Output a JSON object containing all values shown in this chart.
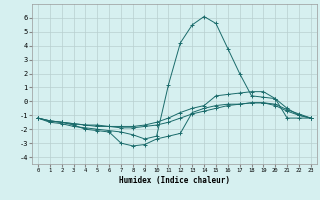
{
  "title": "",
  "xlabel": "Humidex (Indice chaleur)",
  "bg_color": "#d6f0f0",
  "grid_color": "#b8d0d0",
  "line_color": "#1a6b6b",
  "xlim": [
    -0.5,
    23.5
  ],
  "ylim": [
    -4.5,
    7.0
  ],
  "xticks": [
    0,
    1,
    2,
    3,
    4,
    5,
    6,
    7,
    8,
    9,
    10,
    11,
    12,
    13,
    14,
    15,
    16,
    17,
    18,
    19,
    20,
    21,
    22,
    23
  ],
  "yticks": [
    -4,
    -3,
    -2,
    -1,
    0,
    1,
    2,
    3,
    4,
    5,
    6
  ],
  "series": [
    {
      "x": [
        0,
        1,
        2,
        3,
        4,
        5,
        6,
        7,
        8,
        9,
        10,
        11,
        12,
        13,
        14,
        15,
        16,
        17,
        18,
        19,
        20,
        21,
        22,
        23
      ],
      "y": [
        -1.2,
        -1.5,
        -1.6,
        -1.8,
        -1.9,
        -2.0,
        -2.1,
        -2.2,
        -2.4,
        -2.7,
        -2.5,
        1.2,
        4.2,
        5.5,
        6.1,
        5.6,
        3.8,
        2.0,
        0.4,
        0.3,
        0.2,
        -1.2,
        -1.2,
        -1.2
      ]
    },
    {
      "x": [
        0,
        1,
        2,
        3,
        4,
        5,
        6,
        7,
        8,
        9,
        10,
        11,
        12,
        13,
        14,
        15,
        16,
        17,
        18,
        19,
        20,
        21,
        22,
        23
      ],
      "y": [
        -1.2,
        -1.4,
        -1.5,
        -1.6,
        -1.7,
        -1.7,
        -1.8,
        -1.8,
        -1.8,
        -1.7,
        -1.5,
        -1.2,
        -0.8,
        -0.5,
        -0.3,
        0.4,
        0.5,
        0.6,
        0.7,
        0.7,
        0.2,
        -0.5,
        -1.0,
        -1.2
      ]
    },
    {
      "x": [
        0,
        1,
        2,
        3,
        4,
        5,
        6,
        7,
        8,
        9,
        10,
        11,
        12,
        13,
        14,
        15,
        16,
        17,
        18,
        19,
        20,
        21,
        22,
        23
      ],
      "y": [
        -1.2,
        -1.4,
        -1.5,
        -1.6,
        -1.7,
        -1.8,
        -1.8,
        -1.9,
        -1.9,
        -1.8,
        -1.7,
        -1.5,
        -1.2,
        -0.9,
        -0.7,
        -0.5,
        -0.3,
        -0.2,
        -0.1,
        -0.1,
        -0.3,
        -0.7,
        -1.0,
        -1.2
      ]
    },
    {
      "x": [
        0,
        1,
        2,
        3,
        4,
        5,
        6,
        7,
        8,
        9,
        10,
        11,
        12,
        13,
        14,
        15,
        16,
        17,
        18,
        19,
        20,
        21,
        22,
        23
      ],
      "y": [
        -1.2,
        -1.4,
        -1.5,
        -1.7,
        -2.0,
        -2.1,
        -2.2,
        -3.0,
        -3.2,
        -3.1,
        -2.7,
        -2.5,
        -2.3,
        -0.8,
        -0.5,
        -0.3,
        -0.2,
        -0.2,
        -0.1,
        -0.1,
        -0.2,
        -0.6,
        -0.9,
        -1.2
      ]
    }
  ]
}
